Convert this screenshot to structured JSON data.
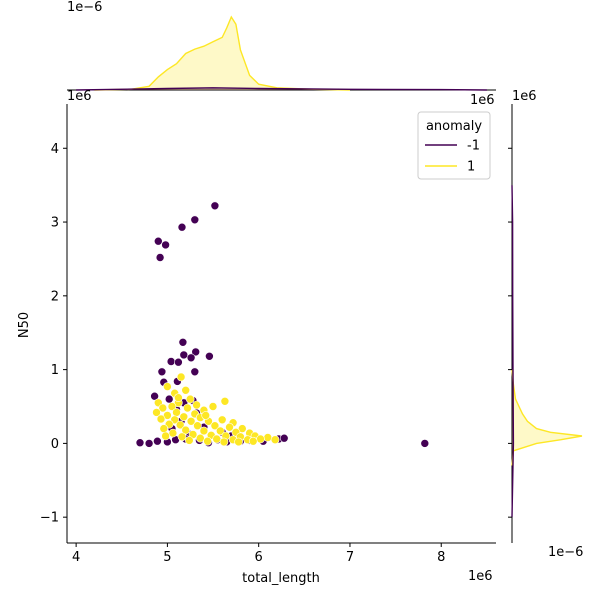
{
  "chart_data": {
    "type": "scatter",
    "title": "",
    "xlabel": "total_length",
    "ylabel": "N50",
    "xlim": [
      3.9,
      8.6
    ],
    "ylim": [
      -1.35,
      4.6
    ],
    "x_ticks": [
      4,
      5,
      6,
      7,
      8
    ],
    "y_ticks": [
      -1,
      0,
      1,
      2,
      3,
      4
    ],
    "x_offset_label": "1e6",
    "y_offset_label": "1e6",
    "top_marginal_offset_label": "1e−6",
    "right_marginal_offset_label": "1e−6",
    "grid": false,
    "legend": {
      "title": "anomaly",
      "placement": "top-right",
      "entries": [
        {
          "label": "-1",
          "color": "#440154"
        },
        {
          "label": "1",
          "color": "#fde725"
        }
      ]
    },
    "series": [
      {
        "name": "-1",
        "color": "#440154",
        "points": [
          [
            5.52,
            3.22
          ],
          [
            5.3,
            3.03
          ],
          [
            5.16,
            2.93
          ],
          [
            4.9,
            2.74
          ],
          [
            4.98,
            2.69
          ],
          [
            4.92,
            2.52
          ],
          [
            5.17,
            1.37
          ],
          [
            5.31,
            1.24
          ],
          [
            5.18,
            1.2
          ],
          [
            5.26,
            1.16
          ],
          [
            5.46,
            1.18
          ],
          [
            5.04,
            1.11
          ],
          [
            5.12,
            1.1
          ],
          [
            5.3,
            0.97
          ],
          [
            4.94,
            0.97
          ],
          [
            5.11,
            0.84
          ],
          [
            4.96,
            0.83
          ],
          [
            4.86,
            0.64
          ],
          [
            5.02,
            0.6
          ],
          [
            5.18,
            0.55
          ],
          [
            5.28,
            0.58
          ],
          [
            5.1,
            0.46
          ],
          [
            5.32,
            0.41
          ],
          [
            5.05,
            0.2
          ],
          [
            5.25,
            0.12
          ],
          [
            4.7,
            0.01
          ],
          [
            4.8,
            0.0
          ],
          [
            4.89,
            0.03
          ],
          [
            5.0,
            0.02
          ],
          [
            5.09,
            0.05
          ],
          [
            5.2,
            0.06
          ],
          [
            5.35,
            0.04
          ],
          [
            5.45,
            0.01
          ],
          [
            5.55,
            0.05
          ],
          [
            5.65,
            0.02
          ],
          [
            5.8,
            0.03
          ],
          [
            5.9,
            0.04
          ],
          [
            6.05,
            0.03
          ],
          [
            6.22,
            0.06
          ],
          [
            6.28,
            0.07
          ],
          [
            7.82,
            0.0
          ],
          [
            5.4,
            0.22
          ],
          [
            5.6,
            0.15
          ],
          [
            5.7,
            0.1
          ],
          [
            5.15,
            0.3
          ]
        ]
      },
      {
        "name": "1",
        "color": "#fde725",
        "points": [
          [
            5.15,
            0.9
          ],
          [
            5.0,
            0.77
          ],
          [
            5.2,
            0.72
          ],
          [
            5.08,
            0.68
          ],
          [
            5.25,
            0.6
          ],
          [
            4.9,
            0.55
          ],
          [
            5.12,
            0.55
          ],
          [
            5.32,
            0.52
          ],
          [
            5.05,
            0.5
          ],
          [
            4.95,
            0.48
          ],
          [
            5.22,
            0.48
          ],
          [
            5.4,
            0.45
          ],
          [
            4.88,
            0.42
          ],
          [
            5.1,
            0.42
          ],
          [
            5.3,
            0.4
          ],
          [
            5.5,
            0.5
          ],
          [
            5.63,
            0.57
          ],
          [
            5.0,
            0.38
          ],
          [
            5.18,
            0.36
          ],
          [
            5.36,
            0.35
          ],
          [
            4.93,
            0.33
          ],
          [
            5.08,
            0.32
          ],
          [
            5.26,
            0.3
          ],
          [
            5.45,
            0.3
          ],
          [
            5.6,
            0.32
          ],
          [
            5.72,
            0.28
          ],
          [
            5.02,
            0.26
          ],
          [
            5.14,
            0.25
          ],
          [
            5.33,
            0.24
          ],
          [
            5.52,
            0.24
          ],
          [
            5.68,
            0.22
          ],
          [
            5.82,
            0.2
          ],
          [
            4.96,
            0.2
          ],
          [
            5.2,
            0.18
          ],
          [
            5.4,
            0.17
          ],
          [
            5.58,
            0.17
          ],
          [
            5.75,
            0.15
          ],
          [
            5.9,
            0.14
          ],
          [
            5.06,
            0.14
          ],
          [
            5.28,
            0.12
          ],
          [
            5.48,
            0.11
          ],
          [
            5.64,
            0.1
          ],
          [
            5.8,
            0.09
          ],
          [
            5.96,
            0.1
          ],
          [
            6.1,
            0.08
          ],
          [
            5.16,
            0.09
          ],
          [
            5.36,
            0.07
          ],
          [
            5.54,
            0.06
          ],
          [
            5.72,
            0.05
          ],
          [
            5.88,
            0.05
          ],
          [
            6.02,
            0.06
          ],
          [
            6.18,
            0.05
          ],
          [
            5.44,
            0.03
          ],
          [
            5.62,
            0.02
          ],
          [
            5.78,
            0.02
          ],
          [
            5.94,
            0.03
          ],
          [
            5.24,
            0.04
          ],
          [
            4.98,
            0.1
          ],
          [
            5.12,
            0.62
          ],
          [
            5.42,
            0.38
          ]
        ]
      }
    ],
    "marginal_density": {
      "x": {
        "series": [
          {
            "name": "1",
            "x": [
              4.2,
              4.6,
              4.8,
              4.9,
              5.0,
              5.1,
              5.2,
              5.3,
              5.4,
              5.5,
              5.6,
              5.65,
              5.7,
              5.75,
              5.8,
              5.9,
              6.0,
              6.2,
              6.6,
              7.0
            ],
            "density": [
              0.0,
              0.01,
              0.05,
              0.18,
              0.28,
              0.36,
              0.5,
              0.56,
              0.6,
              0.66,
              0.72,
              0.85,
              1.0,
              0.9,
              0.55,
              0.2,
              0.08,
              0.03,
              0.01,
              0.0
            ]
          },
          {
            "name": "-1",
            "x": [
              4.0,
              5.0,
              5.5,
              6.0,
              7.0,
              8.0,
              8.5
            ],
            "density": [
              0.0,
              0.02,
              0.03,
              0.02,
              0.01,
              0.005,
              0.0
            ]
          }
        ]
      },
      "y": {
        "series": [
          {
            "name": "1",
            "y": [
              -0.3,
              -0.1,
              0.0,
              0.05,
              0.1,
              0.15,
              0.2,
              0.3,
              0.4,
              0.5,
              0.6,
              0.8,
              1.0
            ],
            "density": [
              0.0,
              0.02,
              0.35,
              0.7,
              1.0,
              0.55,
              0.35,
              0.22,
              0.15,
              0.1,
              0.05,
              0.02,
              0.0
            ]
          },
          {
            "name": "-1",
            "y": [
              -1.0,
              0.0,
              1.0,
              2.0,
              3.0,
              3.5
            ],
            "density": [
              0.0,
              0.02,
              0.015,
              0.01,
              0.008,
              0.0
            ]
          }
        ]
      }
    }
  }
}
